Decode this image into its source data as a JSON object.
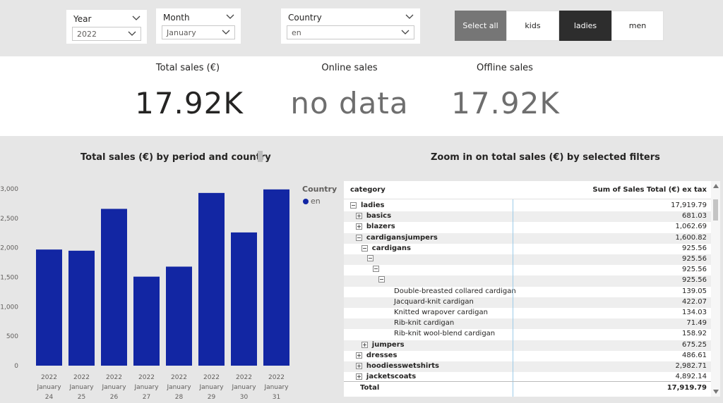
{
  "slicers": {
    "year": {
      "label": "Year",
      "value": "2022"
    },
    "month": {
      "label": "Month",
      "value": "January"
    },
    "country": {
      "label": "Country",
      "value": "en"
    }
  },
  "buttons": {
    "select_all": "Select all",
    "kids": "kids",
    "ladies": "ladies",
    "men": "men"
  },
  "kpis": {
    "total": {
      "title": "Total sales (€)",
      "value": "17.92K"
    },
    "online": {
      "title": "Online sales",
      "value": "no data"
    },
    "offline": {
      "title": "Offline sales",
      "value": "17.92K"
    }
  },
  "chart_data": {
    "type": "bar",
    "title": "Total sales (€) by period and country",
    "categories": [
      "2022 January 24",
      "2022 January 25",
      "2022 January 26",
      "2022 January 27",
      "2022 January 28",
      "2022 January 29",
      "2022 January 30",
      "2022 January 31"
    ],
    "category_lines": [
      [
        "2022",
        "January",
        "24"
      ],
      [
        "2022",
        "January",
        "25"
      ],
      [
        "2022",
        "January",
        "26"
      ],
      [
        "2022",
        "January",
        "27"
      ],
      [
        "2022",
        "January",
        "28"
      ],
      [
        "2022",
        "January",
        "29"
      ],
      [
        "2022",
        "January",
        "30"
      ],
      [
        "2022",
        "January",
        "31"
      ]
    ],
    "series": [
      {
        "name": "en",
        "values": [
          1970,
          1950,
          2660,
          1510,
          1680,
          2930,
          2260,
          2990
        ],
        "color": "#1226a3"
      }
    ],
    "legend_title": "Country",
    "yticks": [
      "0",
      "500",
      "1,000",
      "1,500",
      "2,000",
      "2,500",
      "3,000"
    ],
    "ylim": [
      0,
      3000
    ],
    "legend_placement": "top-right"
  },
  "table": {
    "title": "Zoom in on total sales (€) by selected filters",
    "headers": {
      "category": "category",
      "sum": "Sum of Sales Total (€) ex tax"
    },
    "rows": [
      {
        "label": "ladies",
        "value": "17,919.79",
        "depth": 0,
        "icon": "minus",
        "bold": true
      },
      {
        "label": "basics",
        "value": "681.03",
        "depth": 1,
        "icon": "plus",
        "bold": true
      },
      {
        "label": "blazers",
        "value": "1,062.69",
        "depth": 1,
        "icon": "plus",
        "bold": true
      },
      {
        "label": "cardigansjumpers",
        "value": "1,600.82",
        "depth": 1,
        "icon": "minus",
        "bold": true
      },
      {
        "label": "cardigans",
        "value": "925.56",
        "depth": 2,
        "icon": "minus",
        "bold": true
      },
      {
        "label": "",
        "value": "925.56",
        "depth": 3,
        "icon": "minus",
        "bold": false
      },
      {
        "label": "",
        "value": "925.56",
        "depth": 4,
        "icon": "minus",
        "bold": false
      },
      {
        "label": "",
        "value": "925.56",
        "depth": 5,
        "icon": "minus",
        "bold": false
      },
      {
        "label": "Double-breasted collared cardigan",
        "value": "139.05",
        "depth": 6,
        "icon": "none",
        "bold": false
      },
      {
        "label": "Jacquard-knit cardigan",
        "value": "422.07",
        "depth": 6,
        "icon": "none",
        "bold": false
      },
      {
        "label": "Knitted wrapover cardigan",
        "value": "134.03",
        "depth": 6,
        "icon": "none",
        "bold": false
      },
      {
        "label": "Rib-knit cardigan",
        "value": "71.49",
        "depth": 6,
        "icon": "none",
        "bold": false
      },
      {
        "label": "Rib-knit wool-blend cardigan",
        "value": "158.92",
        "depth": 6,
        "icon": "none",
        "bold": false
      },
      {
        "label": "jumpers",
        "value": "675.25",
        "depth": 2,
        "icon": "plus",
        "bold": true
      },
      {
        "label": "dresses",
        "value": "486.61",
        "depth": 1,
        "icon": "plus",
        "bold": true
      },
      {
        "label": "hoodiesswetshirts",
        "value": "2,982.71",
        "depth": 1,
        "icon": "plus",
        "bold": true
      },
      {
        "label": "jacketscoats",
        "value": "4,892.14",
        "depth": 1,
        "icon": "plus",
        "bold": true
      }
    ],
    "total": {
      "label": "Total",
      "value": "17,919.79"
    }
  },
  "colors": {
    "bar": "#1226a3",
    "kpi_dark": "#252423",
    "kpi_gray": "#6e6e6e",
    "accent_line": "#9ccbe8"
  }
}
